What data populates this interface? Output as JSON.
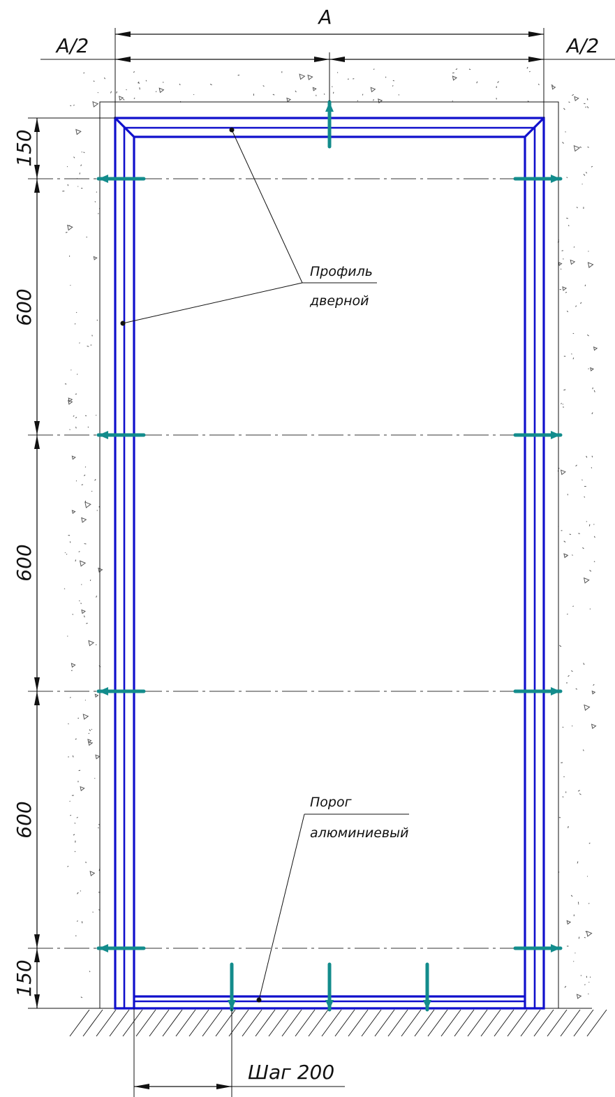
{
  "dimensions": {
    "top_width": "A",
    "left_half": "A/2",
    "right_half": "A/2",
    "v_top": "150",
    "v_upper": "600",
    "v_middle": "600",
    "v_lower": "600",
    "v_bottom": "150",
    "step": "Шаг 200"
  },
  "callouts": {
    "profile_line1": "Профиль",
    "profile_line2": "дверной",
    "threshold_line1": "Порог",
    "threshold_line2": "алюминиевый"
  },
  "colors": {
    "frame": "#1010cc",
    "anchor": "#138c8c"
  }
}
